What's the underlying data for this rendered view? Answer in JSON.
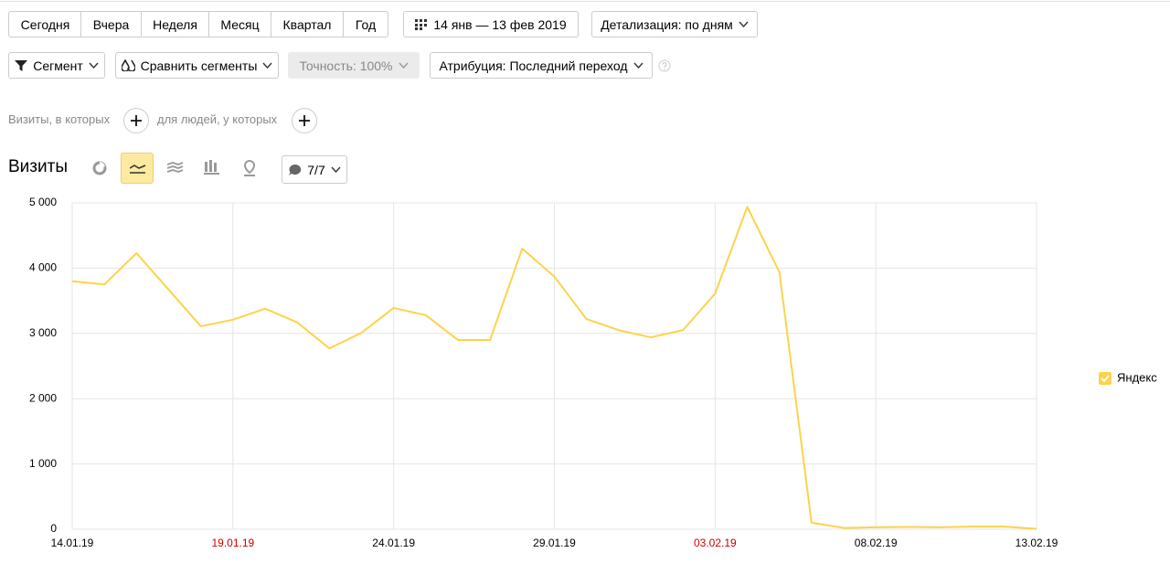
{
  "toolbar": {
    "periods": [
      "Сегодня",
      "Вчера",
      "Неделя",
      "Месяц",
      "Квартал",
      "Год"
    ],
    "date_range": "14 янв — 13 фев 2019",
    "detail": "Детализация: по дням"
  },
  "filters": {
    "segment": "Сегмент",
    "compare": "Сравнить сегменты",
    "accuracy": "Точность: 100%",
    "attribution": "Атрибуция: Последний переход"
  },
  "conditions": {
    "visits": "Визиты, в которых",
    "people": "для людей, у которых"
  },
  "report": {
    "title": "Визиты",
    "annotations": "7/7"
  },
  "chart_data": {
    "type": "line",
    "categories": [
      "14.01.19",
      null,
      null,
      null,
      null,
      "19.01.19",
      null,
      null,
      null,
      null,
      "24.01.19",
      null,
      null,
      null,
      null,
      "29.01.19",
      null,
      null,
      null,
      null,
      "03.02.19",
      null,
      null,
      null,
      null,
      "08.02.19",
      null,
      null,
      null,
      null,
      "13.02.19"
    ],
    "category_colors": [
      "#000000",
      null,
      null,
      null,
      null,
      "#cc0000",
      null,
      null,
      null,
      null,
      "#000000",
      null,
      null,
      null,
      null,
      "#000000",
      null,
      null,
      null,
      null,
      "#cc0000",
      null,
      null,
      null,
      null,
      "#000000",
      null,
      null,
      null,
      null,
      "#000000"
    ],
    "series": [
      {
        "name": "Яндекс",
        "color": "#fcd34a",
        "values": [
          3800,
          3750,
          4230,
          3670,
          3110,
          3210,
          3380,
          3170,
          2770,
          3010,
          3390,
          3280,
          2900,
          2900,
          4300,
          3870,
          3220,
          3050,
          2940,
          3050,
          3610,
          4940,
          3940,
          100,
          20,
          30,
          35,
          30,
          40,
          40,
          5
        ]
      }
    ],
    "ylim": [
      0,
      5000
    ],
    "yticks": [
      0,
      {
        "value": 1000,
        "label": "1 000"
      },
      {
        "value": 2000,
        "label": "2 000"
      },
      {
        "value": 3000,
        "label": "3 000"
      },
      {
        "value": 4000,
        "label": "4 000"
      },
      {
        "value": 5000,
        "label": "5 000"
      }
    ],
    "grid": true,
    "legend": "right"
  }
}
